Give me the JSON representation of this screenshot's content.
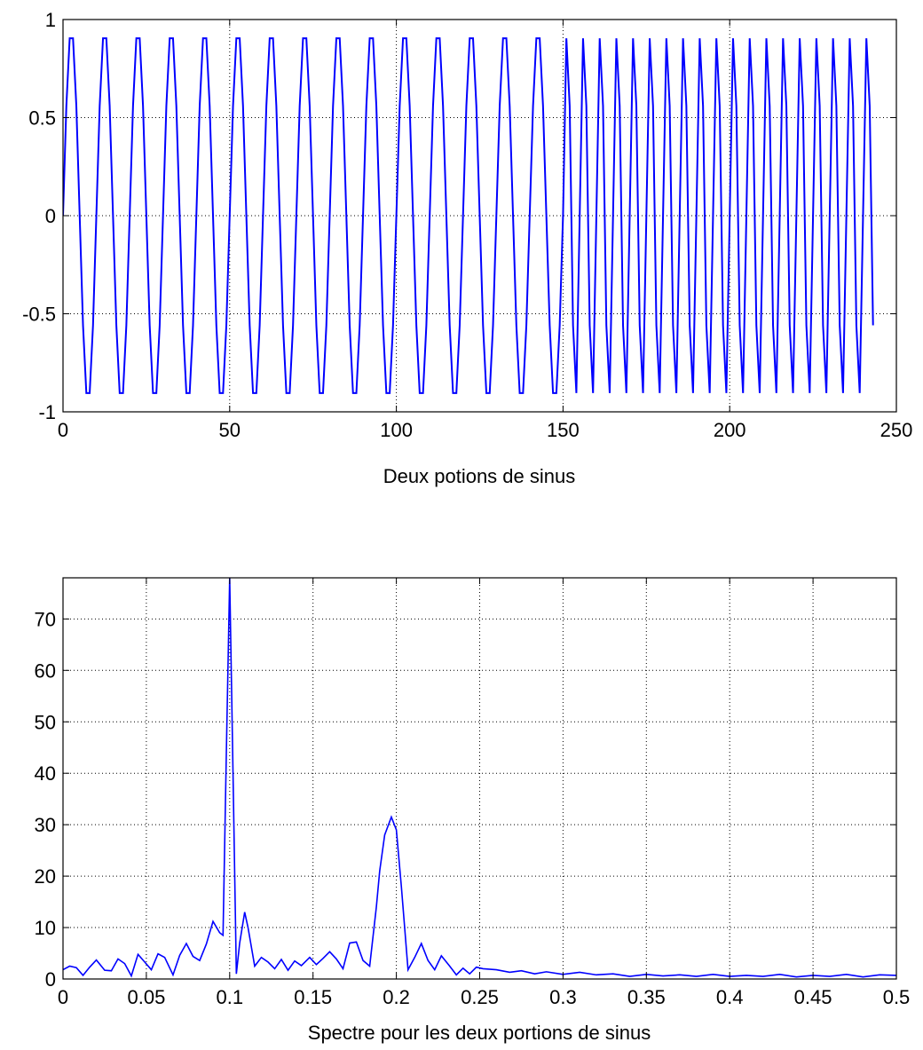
{
  "chart_data": [
    {
      "type": "line",
      "title": "",
      "xlabel": "Deux potions de sinus",
      "ylabel": "",
      "xlim": [
        0,
        250
      ],
      "ylim": [
        -1,
        1
      ],
      "xticks": [
        0,
        50,
        100,
        150,
        200,
        250
      ],
      "yticks": [
        -1,
        -0.5,
        0,
        0.5,
        1
      ],
      "xtick_labels": [
        "0",
        "50",
        "100",
        "150",
        "200",
        "250"
      ],
      "ytick_labels": [
        "-1",
        "-0.5",
        "0",
        "0.5",
        "1"
      ],
      "grid": true,
      "grid_style": "dotted",
      "series": [
        {
          "color": "#0000ff",
          "description_points": 244,
          "segments": [
            {
              "x_start": 0,
              "x_end": 150,
              "frequency": 0.1,
              "amplitude": 0.951
            },
            {
              "x_start": 150,
              "x_end": 243,
              "frequency": 0.2,
              "amplitude": 0.951
            }
          ]
        }
      ]
    },
    {
      "type": "line",
      "title": "",
      "xlabel": "Spectre pour les deux portions de sinus",
      "ylabel": "",
      "xlim": [
        0,
        0.5
      ],
      "ylim": [
        0,
        78
      ],
      "xticks": [
        0,
        0.05,
        0.1,
        0.15,
        0.2,
        0.25,
        0.3,
        0.35,
        0.4,
        0.45,
        0.5
      ],
      "yticks": [
        0,
        10,
        20,
        30,
        40,
        50,
        60,
        70
      ],
      "xtick_labels": [
        "0",
        "0.05",
        "0.1",
        "0.15",
        "0.2",
        "0.25",
        "0.3",
        "0.35",
        "0.4",
        "0.45",
        "0.5"
      ],
      "ytick_labels": [
        "0",
        "10",
        "20",
        "30",
        "40",
        "50",
        "60",
        "70"
      ],
      "grid": true,
      "grid_style": "dotted",
      "series": [
        {
          "color": "#0000ff",
          "x": [
            0,
            0.004,
            0.008,
            0.012,
            0.016,
            0.02,
            0.025,
            0.029,
            0.033,
            0.037,
            0.041,
            0.045,
            0.049,
            0.053,
            0.057,
            0.061,
            0.066,
            0.07,
            0.074,
            0.078,
            0.082,
            0.086,
            0.09,
            0.094,
            0.096,
            0.098,
            0.1,
            0.102,
            0.104,
            0.106,
            0.109,
            0.111,
            0.115,
            0.119,
            0.123,
            0.127,
            0.131,
            0.135,
            0.139,
            0.143,
            0.148,
            0.152,
            0.156,
            0.16,
            0.164,
            0.168,
            0.172,
            0.176,
            0.18,
            0.184,
            0.188,
            0.19,
            0.193,
            0.197,
            0.2,
            0.203,
            0.207,
            0.211,
            0.215,
            0.219,
            0.223,
            0.227,
            0.232,
            0.236,
            0.24,
            0.244,
            0.248,
            0.252,
            0.26,
            0.268,
            0.275,
            0.283,
            0.29,
            0.3,
            0.31,
            0.32,
            0.33,
            0.34,
            0.35,
            0.36,
            0.37,
            0.38,
            0.39,
            0.4,
            0.41,
            0.42,
            0.43,
            0.44,
            0.45,
            0.46,
            0.47,
            0.48,
            0.49,
            0.5
          ],
          "y": [
            1.8,
            2.5,
            2.2,
            0.7,
            2.3,
            3.7,
            1.7,
            1.6,
            3.9,
            3.0,
            0.6,
            4.8,
            3.3,
            1.8,
            4.9,
            4.2,
            0.8,
            4.6,
            6.9,
            4.4,
            3.6,
            6.8,
            11.2,
            9.0,
            8.5,
            44.0,
            78.0,
            40.0,
            1.0,
            7.0,
            13.0,
            10.0,
            2.5,
            4.2,
            3.3,
            2.0,
            3.8,
            1.7,
            3.5,
            2.6,
            4.2,
            2.8,
            4.0,
            5.3,
            3.9,
            2.0,
            7.0,
            7.2,
            3.6,
            2.5,
            14.0,
            21.0,
            28.0,
            31.5,
            29.0,
            18.0,
            1.8,
            4.2,
            6.9,
            3.6,
            1.8,
            4.5,
            2.5,
            0.8,
            2.1,
            1.0,
            2.3,
            2.0,
            1.8,
            1.3,
            1.6,
            1.0,
            1.4,
            0.9,
            1.3,
            0.8,
            1.0,
            0.5,
            0.9,
            0.6,
            0.8,
            0.5,
            0.9,
            0.5,
            0.7,
            0.5,
            0.9,
            0.4,
            0.7,
            0.5,
            0.9,
            0.4,
            0.8,
            0.7
          ]
        }
      ]
    }
  ]
}
